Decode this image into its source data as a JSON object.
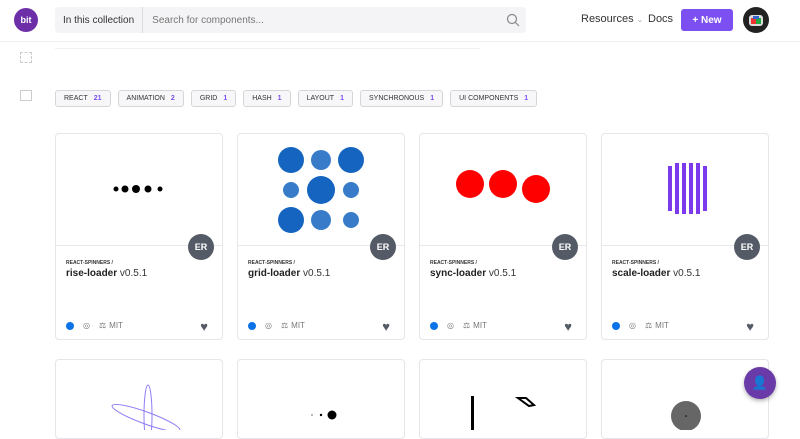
{
  "header": {
    "logo": "bit",
    "scope": "In this collection",
    "search_placeholder": "Search for components...",
    "resources": "Resources",
    "docs": "Docs",
    "new_button": "+ New"
  },
  "tags": [
    {
      "label": "REACT",
      "count": "21"
    },
    {
      "label": "ANIMATION",
      "count": "2"
    },
    {
      "label": "GRID",
      "count": "1"
    },
    {
      "label": "HASH",
      "count": "1"
    },
    {
      "label": "LAYOUT",
      "count": "1"
    },
    {
      "label": "SYNCHRONOUS",
      "count": "1"
    },
    {
      "label": "UI COMPONENTS",
      "count": "1"
    }
  ],
  "cards": [
    {
      "scope": "REACT-SPINNERS /",
      "name": "rise-loader",
      "version": "v0.5.1",
      "owner": "ER",
      "license": "MIT"
    },
    {
      "scope": "REACT-SPINNERS /",
      "name": "grid-loader",
      "version": "v0.5.1",
      "owner": "ER",
      "license": "MIT"
    },
    {
      "scope": "REACT-SPINNERS /",
      "name": "sync-loader",
      "version": "v0.5.1",
      "owner": "ER",
      "license": "MIT"
    },
    {
      "scope": "REACT-SPINNERS /",
      "name": "scale-loader",
      "version": "v0.5.1",
      "owner": "ER",
      "license": "MIT"
    }
  ],
  "colors": {
    "accent": "#7c4ff0",
    "blue": "#0b72e7",
    "red": "#ff0000",
    "grid_blue": "#1565c0"
  }
}
